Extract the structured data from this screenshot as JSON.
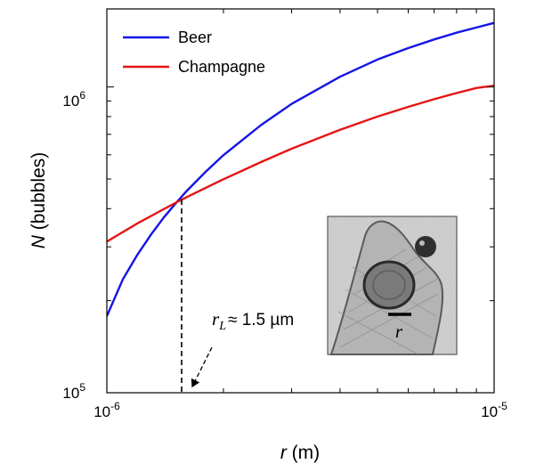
{
  "chart_data": {
    "type": "line",
    "xscale": "log",
    "yscale": "log",
    "xlim": [
      1e-06,
      1e-05
    ],
    "ylim": [
      100000,
      1800000
    ],
    "x_tick_labels": [
      {
        "value": 1e-06,
        "base": "10",
        "exp": "-6"
      },
      {
        "value": 1e-05,
        "base": "10",
        "exp": "-5"
      }
    ],
    "y_tick_labels": [
      {
        "value": 100000,
        "base": "10",
        "exp": "5"
      },
      {
        "value": 1000000,
        "base": "10",
        "exp": "6"
      }
    ],
    "xlabel": {
      "var": "r",
      "unit": " (m)"
    },
    "ylabel": {
      "var": "N",
      "unit": " (bubbles)"
    },
    "series": [
      {
        "name": "Beer",
        "color": "#1414e6",
        "x": [
          1e-06,
          1.1e-06,
          1.2e-06,
          1.3e-06,
          1.4e-06,
          1.5e-06,
          1.6e-06,
          1.8e-06,
          2e-06,
          2.5e-06,
          3e-06,
          4e-06,
          5e-06,
          6e-06,
          7e-06,
          8e-06,
          9e-06,
          1e-05
        ],
        "y": [
          178000,
          235000,
          283000,
          329000,
          373000,
          414000,
          454000,
          528000,
          598000,
          750000,
          880000,
          1080000,
          1230000,
          1340000,
          1430000,
          1505000,
          1565000,
          1620000
        ]
      },
      {
        "name": "Champagne",
        "color": "#e61414",
        "x": [
          1e-06,
          1.2e-06,
          1.4e-06,
          1.5e-06,
          1.6e-06,
          1.8e-06,
          2e-06,
          2.5e-06,
          3e-06,
          4e-06,
          5e-06,
          6e-06,
          7e-06,
          8e-06,
          9e-06,
          1e-05
        ],
        "y": [
          312000,
          358000,
          398000,
          417000,
          435000,
          468000,
          499000,
          568000,
          628000,
          724000,
          800000,
          861000,
          912000,
          955000,
          992000,
          1010000
        ]
      }
    ],
    "legend": {
      "position": "top-left",
      "entries": [
        "Beer",
        "Champagne"
      ]
    },
    "annotation": {
      "var": "r",
      "sub": "L",
      "text": "≈ 1.5 µm",
      "x_value": 1.56e-06
    },
    "inset": {
      "description": "bubble micrograph",
      "label": "r",
      "position": "lower-right"
    }
  },
  "colors": {
    "axis": "#000000",
    "guide": "#000000"
  }
}
